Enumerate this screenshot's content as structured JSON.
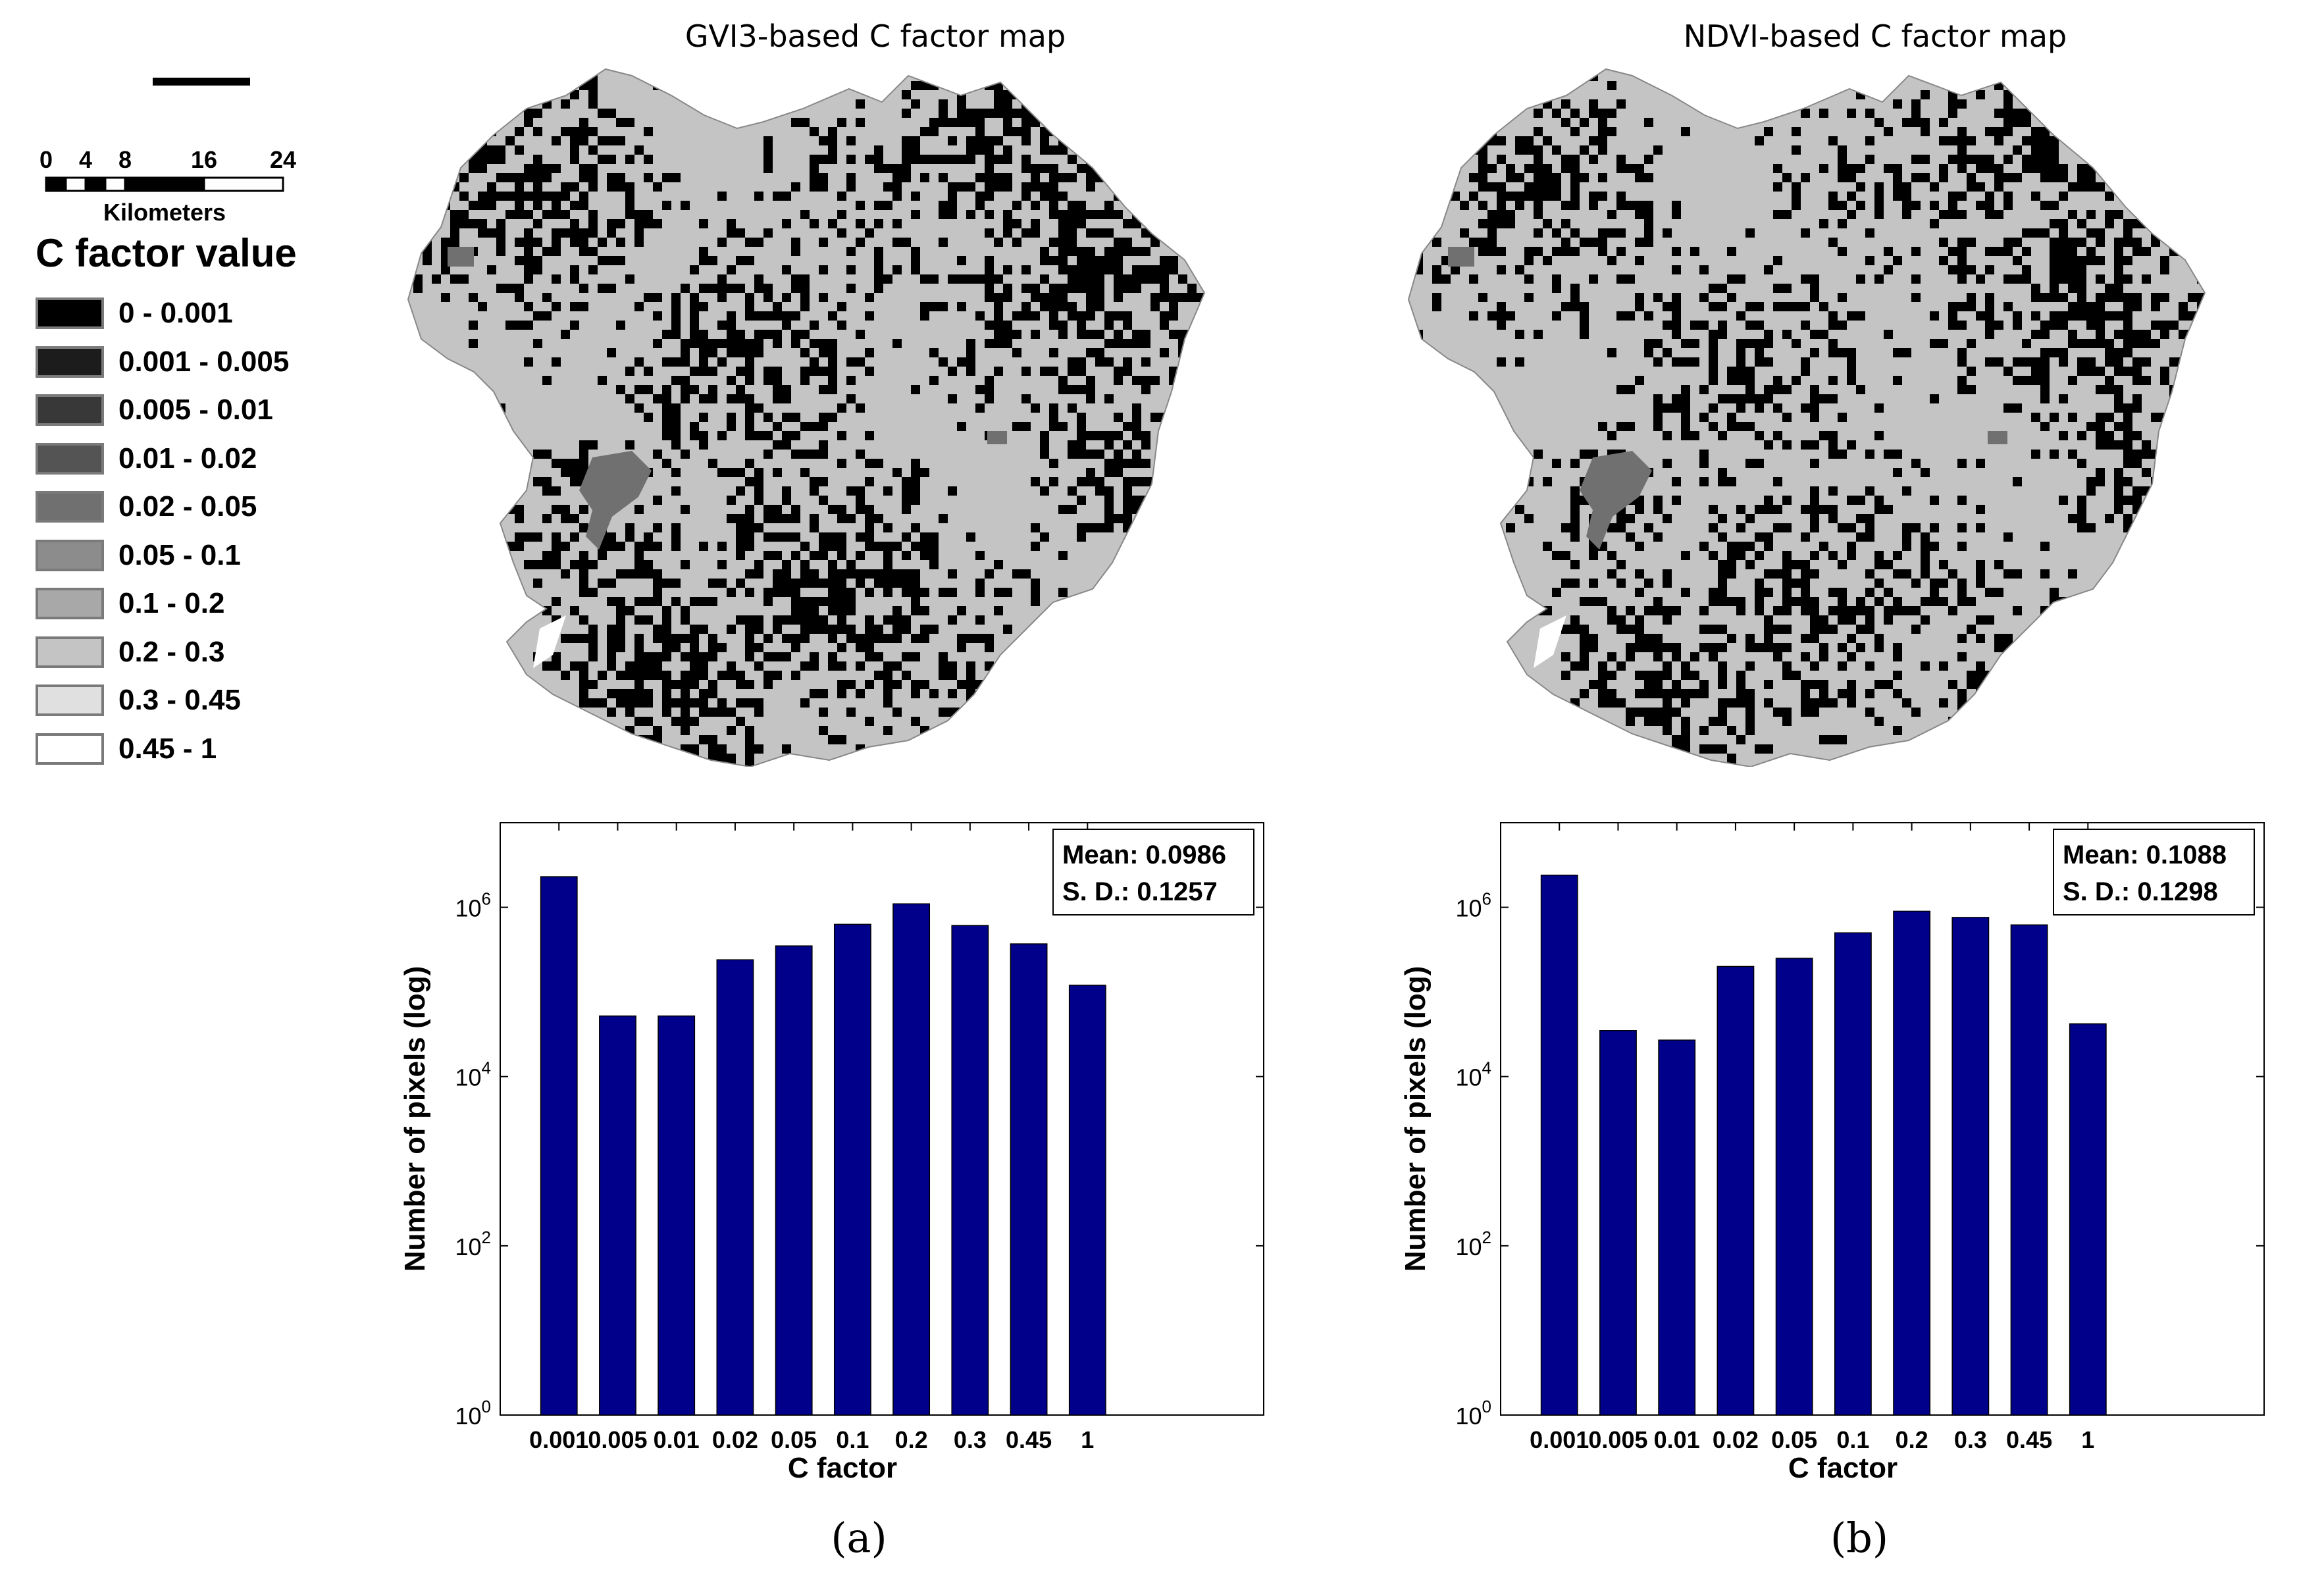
{
  "legend": {
    "scale_ticks": [
      "0",
      "4",
      "8",
      "16",
      "24"
    ],
    "scale_tick_values_km": [
      0,
      4,
      8,
      16,
      24
    ],
    "scale_unit": "Kilometers",
    "title": "C factor value",
    "items": [
      {
        "label": "0 - 0.001",
        "color": "#000000"
      },
      {
        "label": "0.001 - 0.005",
        "color": "#1c1c1c"
      },
      {
        "label": "0.005 - 0.01",
        "color": "#383838"
      },
      {
        "label": "0.01 - 0.02",
        "color": "#545454"
      },
      {
        "label": "0.02 - 0.05",
        "color": "#707070"
      },
      {
        "label": "0.05 - 0.1",
        "color": "#8c8c8c"
      },
      {
        "label": "0.1 - 0.2",
        "color": "#a8a8a8"
      },
      {
        "label": "0.2 - 0.3",
        "color": "#c4c4c4"
      },
      {
        "label": "0.3 - 0.45",
        "color": "#e0e0e0"
      },
      {
        "label": "0.45 - 1",
        "color": "#ffffff"
      }
    ]
  },
  "maps": [
    {
      "title": "GVI3-based C factor map"
    },
    {
      "title": "NDVI-based C factor map"
    }
  ],
  "panel_labels": [
    "(a)",
    "(b)"
  ],
  "bar_color": "#00008b",
  "chart_data": [
    {
      "type": "bar",
      "categories": [
        "0.001",
        "0.005",
        "0.01",
        "0.02",
        "0.05",
        "0.1",
        "0.2",
        "0.3",
        "0.45",
        "1"
      ],
      "values": [
        2300000,
        52000,
        52000,
        240000,
        350000,
        630000,
        1100000,
        610000,
        370000,
        120000
      ],
      "xlabel": "C factor",
      "ylabel": "Number of pixels (log)",
      "yscale": "log",
      "ylim": [
        1,
        10000000
      ],
      "yticks": [
        {
          "base": "10",
          "exp": "0"
        },
        {
          "base": "10",
          "exp": "2"
        },
        {
          "base": "10",
          "exp": "4"
        },
        {
          "base": "10",
          "exp": "6"
        }
      ],
      "ytick_values": [
        1,
        100,
        10000,
        1000000
      ],
      "annotation": [
        "Mean: 0.0986",
        "S. D.: 0.1257"
      ],
      "annotation_position": "top-right",
      "grid": false
    },
    {
      "type": "bar",
      "categories": [
        "0.001",
        "0.005",
        "0.01",
        "0.02",
        "0.05",
        "0.1",
        "0.2",
        "0.3",
        "0.45",
        "1"
      ],
      "values": [
        2400000,
        35000,
        27000,
        200000,
        250000,
        500000,
        900000,
        760000,
        620000,
        42000
      ],
      "xlabel": "C factor",
      "ylabel": "Number of pixels (log)",
      "yscale": "log",
      "ylim": [
        1,
        10000000
      ],
      "yticks": [
        {
          "base": "10",
          "exp": "0"
        },
        {
          "base": "10",
          "exp": "2"
        },
        {
          "base": "10",
          "exp": "4"
        },
        {
          "base": "10",
          "exp": "6"
        }
      ],
      "ytick_values": [
        1,
        100,
        10000,
        1000000
      ],
      "annotation": [
        "Mean: 0.1088",
        "S. D.: 0.1298"
      ],
      "annotation_position": "top-right",
      "grid": false
    }
  ]
}
